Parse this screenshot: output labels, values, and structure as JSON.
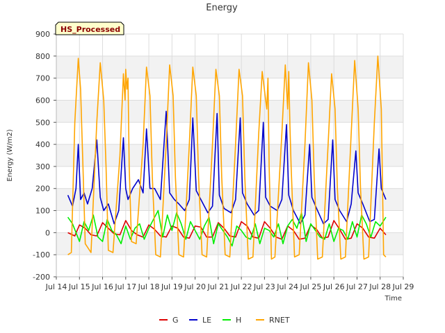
{
  "chart_data": {
    "type": "line",
    "title": "Energy",
    "xlabel": "Time",
    "ylabel": "Energy (W/m2)",
    "badge": "HS_Processed",
    "ylim": [
      -200,
      900
    ],
    "xlim": [
      14,
      29
    ],
    "y_ticks": [
      -200,
      -100,
      0,
      100,
      200,
      300,
      400,
      500,
      600,
      700,
      800,
      900
    ],
    "x_ticks": [
      {
        "v": 14,
        "label": "Jul 14"
      },
      {
        "v": 15,
        "label": "Jul 15"
      },
      {
        "v": 16,
        "label": "Jul 16"
      },
      {
        "v": 17,
        "label": "Jul 17"
      },
      {
        "v": 18,
        "label": "Jul 18"
      },
      {
        "v": 19,
        "label": "Jul 19"
      },
      {
        "v": 20,
        "label": "Jul 20"
      },
      {
        "v": 21,
        "label": "Jul 21"
      },
      {
        "v": 22,
        "label": "Jul 22"
      },
      {
        "v": 23,
        "label": "Jul 23"
      },
      {
        "v": 24,
        "label": "Jul 24"
      },
      {
        "v": 25,
        "label": "Jul 25"
      },
      {
        "v": 26,
        "label": "Jul 26"
      },
      {
        "v": 27,
        "label": "Jul 27"
      },
      {
        "v": 28,
        "label": "Jul 28"
      },
      {
        "v": 29,
        "label": "Jul 29"
      }
    ],
    "grid": true,
    "legend_position": "bottom",
    "series": [
      {
        "name": "G",
        "color": "#dd0000",
        "x": [
          14.5,
          14.8,
          15.0,
          15.25,
          15.5,
          15.75,
          16.0,
          16.25,
          16.5,
          16.75,
          17.0,
          17.25,
          17.5,
          17.75,
          18.0,
          18.25,
          18.5,
          18.75,
          19.0,
          19.25,
          19.5,
          19.75,
          20.0,
          20.25,
          20.5,
          20.75,
          21.0,
          21.25,
          21.5,
          21.75,
          22.0,
          22.25,
          22.5,
          22.75,
          23.0,
          23.25,
          23.5,
          23.75,
          24.0,
          24.25,
          24.5,
          24.75,
          25.0,
          25.25,
          25.5,
          25.75,
          26.0,
          26.25,
          26.5,
          26.75,
          27.0,
          27.25,
          27.5,
          27.75,
          28.0,
          28.25
        ],
        "y": [
          0,
          -15,
          35,
          20,
          -10,
          -15,
          45,
          20,
          -5,
          -10,
          55,
          10,
          -10,
          -20,
          35,
          15,
          -15,
          -20,
          30,
          20,
          -20,
          -25,
          30,
          25,
          -20,
          -20,
          45,
          20,
          -15,
          -20,
          50,
          30,
          -20,
          -25,
          50,
          20,
          -20,
          -30,
          30,
          10,
          -30,
          -25,
          35,
          15,
          -25,
          -20,
          55,
          15,
          -30,
          -25,
          40,
          20,
          -20,
          -25,
          20,
          -10
        ]
      },
      {
        "name": "LE",
        "color": "#0000cc",
        "x": [
          14.5,
          14.7,
          14.85,
          14.95,
          15.05,
          15.2,
          15.35,
          15.55,
          15.75,
          15.9,
          16.05,
          16.25,
          16.5,
          16.7,
          16.9,
          17.0,
          17.1,
          17.3,
          17.55,
          17.75,
          17.9,
          18.05,
          18.25,
          18.5,
          18.75,
          18.9,
          19.1,
          19.3,
          19.55,
          19.75,
          19.9,
          20.05,
          20.25,
          20.55,
          20.75,
          20.95,
          21.05,
          21.25,
          21.55,
          21.75,
          21.95,
          22.05,
          22.25,
          22.55,
          22.75,
          22.95,
          23.05,
          23.25,
          23.55,
          23.75,
          23.95,
          24.05,
          24.25,
          24.55,
          24.75,
          24.95,
          25.05,
          25.25,
          25.55,
          25.75,
          25.95,
          26.05,
          26.25,
          26.55,
          26.75,
          26.95,
          27.05,
          27.25,
          27.55,
          27.75,
          27.95,
          28.05,
          28.25
        ],
        "y": [
          170,
          120,
          200,
          400,
          150,
          180,
          130,
          200,
          420,
          160,
          100,
          130,
          40,
          100,
          430,
          200,
          150,
          200,
          240,
          180,
          470,
          200,
          200,
          150,
          550,
          180,
          150,
          130,
          100,
          150,
          520,
          190,
          150,
          90,
          120,
          540,
          170,
          110,
          90,
          150,
          520,
          180,
          130,
          80,
          100,
          500,
          160,
          120,
          100,
          150,
          490,
          170,
          100,
          40,
          80,
          400,
          160,
          110,
          40,
          60,
          420,
          150,
          100,
          50,
          130,
          370,
          180,
          130,
          50,
          60,
          380,
          200,
          150
        ]
      },
      {
        "name": "H",
        "color": "#00ee00",
        "x": [
          14.5,
          14.7,
          15.0,
          15.2,
          15.4,
          15.6,
          15.8,
          16.0,
          16.2,
          16.4,
          16.6,
          16.8,
          17.0,
          17.2,
          17.4,
          17.6,
          17.8,
          18.0,
          18.2,
          18.4,
          18.6,
          18.8,
          19.0,
          19.2,
          19.4,
          19.6,
          19.8,
          20.0,
          20.2,
          20.4,
          20.6,
          20.8,
          21.0,
          21.2,
          21.4,
          21.6,
          21.8,
          22.0,
          22.2,
          22.4,
          22.6,
          22.8,
          23.0,
          23.2,
          23.4,
          23.6,
          23.8,
          24.0,
          24.2,
          24.4,
          24.6,
          24.8,
          25.0,
          25.2,
          25.4,
          25.6,
          25.8,
          26.0,
          26.2,
          26.4,
          26.6,
          26.8,
          27.0,
          27.2,
          27.4,
          27.6,
          27.8,
          28.0,
          28.25
        ],
        "y": [
          70,
          40,
          -40,
          50,
          10,
          80,
          -20,
          -40,
          60,
          10,
          -10,
          -50,
          30,
          -30,
          20,
          40,
          -30,
          20,
          60,
          100,
          -20,
          80,
          10,
          90,
          40,
          -30,
          50,
          10,
          -30,
          30,
          70,
          -50,
          40,
          10,
          -20,
          -60,
          30,
          10,
          -20,
          -30,
          40,
          -50,
          20,
          10,
          -20,
          40,
          -50,
          30,
          60,
          20,
          90,
          -40,
          40,
          10,
          -20,
          -30,
          40,
          -40,
          20,
          10,
          -30,
          50,
          -20,
          80,
          40,
          -20,
          50,
          30,
          70
        ]
      },
      {
        "name": "RNET",
        "color": "#ffa500",
        "x": [
          14.5,
          14.65,
          14.8,
          14.95,
          15.05,
          15.15,
          15.25,
          15.5,
          15.75,
          15.9,
          16.05,
          16.15,
          16.25,
          16.45,
          16.75,
          16.9,
          16.97,
          17.0,
          17.05,
          17.1,
          17.15,
          17.25,
          17.45,
          17.75,
          17.9,
          18.05,
          18.15,
          18.3,
          18.5,
          18.75,
          18.9,
          19.05,
          19.15,
          19.3,
          19.5,
          19.75,
          19.9,
          20.05,
          20.15,
          20.3,
          20.5,
          20.75,
          20.9,
          21.05,
          21.15,
          21.3,
          21.5,
          21.75,
          21.9,
          22.05,
          22.15,
          22.3,
          22.5,
          22.75,
          22.9,
          23.05,
          23.1,
          23.15,
          23.2,
          23.3,
          23.45,
          23.75,
          23.9,
          24.0,
          24.05,
          24.1,
          24.15,
          24.3,
          24.5,
          24.75,
          24.9,
          25.05,
          25.15,
          25.3,
          25.5,
          25.75,
          25.9,
          26.05,
          26.15,
          26.3,
          26.5,
          26.75,
          26.9,
          27.05,
          27.15,
          27.3,
          27.5,
          27.75,
          27.9,
          28.05,
          28.15,
          28.25
        ],
        "y": [
          -100,
          -90,
          500,
          790,
          650,
          300,
          -50,
          -90,
          500,
          770,
          600,
          300,
          -80,
          -90,
          350,
          720,
          600,
          740,
          650,
          700,
          300,
          -40,
          -50,
          400,
          750,
          620,
          250,
          -100,
          -110,
          400,
          760,
          620,
          250,
          -100,
          -110,
          400,
          750,
          620,
          250,
          -100,
          -110,
          400,
          740,
          620,
          250,
          -100,
          -110,
          400,
          740,
          620,
          250,
          -120,
          -110,
          450,
          730,
          600,
          560,
          700,
          300,
          -120,
          -110,
          450,
          760,
          560,
          730,
          480,
          300,
          -110,
          -100,
          400,
          770,
          600,
          250,
          -120,
          -110,
          400,
          720,
          560,
          200,
          -120,
          -110,
          450,
          780,
          560,
          200,
          -120,
          -110,
          500,
          800,
          560,
          -100,
          -110
        ]
      }
    ]
  }
}
